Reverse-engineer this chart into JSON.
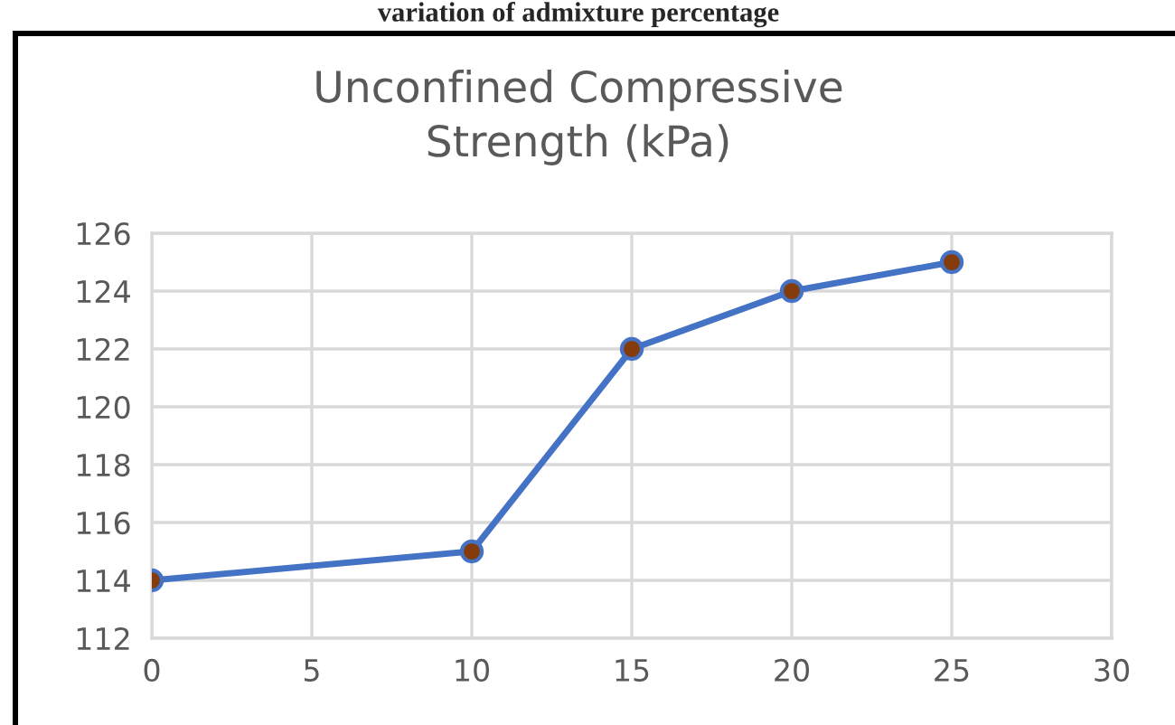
{
  "chart_data": {
    "type": "line",
    "title": "Unconfined Compressive\nStrength (kPa)",
    "annotations": [
      "variation of admixture percentage"
    ],
    "x": [
      0,
      10,
      15,
      20,
      25
    ],
    "series": [
      {
        "color": "#4472c4",
        "values": [
          114,
          115,
          122,
          124,
          125
        ]
      }
    ],
    "xlim": [
      0,
      30
    ],
    "xticks": [
      0,
      5,
      10,
      15,
      20,
      25,
      30
    ],
    "ylim": [
      112,
      126
    ],
    "yticks": [
      112,
      114,
      116,
      118,
      120,
      122,
      124,
      126
    ],
    "grid": true,
    "marker": "circle",
    "line_style": "solid"
  }
}
